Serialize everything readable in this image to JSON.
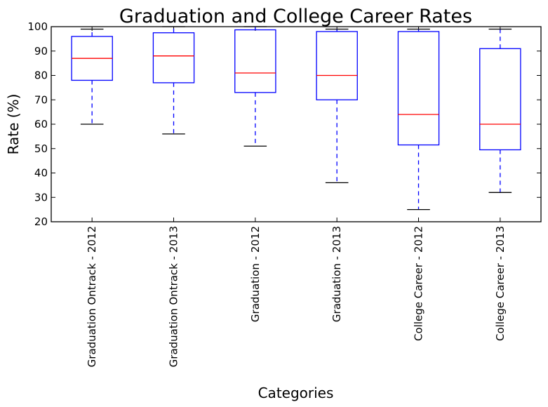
{
  "chart_data": {
    "type": "box",
    "title": "Graduation and College Career Rates",
    "xlabel": "Categories",
    "ylabel": "Rate (%)",
    "ylim": [
      20,
      100
    ],
    "yticks": [
      20,
      30,
      40,
      50,
      60,
      70,
      80,
      90,
      100
    ],
    "categories": [
      "Graduation Ontrack - 2012",
      "Graduation Ontrack - 2013",
      "Graduation - 2012",
      "Graduation - 2013",
      "College Career - 2012",
      "College Career - 2013"
    ],
    "boxes": [
      {
        "whislo": 60,
        "q1": 78,
        "med": 87,
        "q3": 96,
        "whishi": 99
      },
      {
        "whislo": 56,
        "q1": 77,
        "med": 88,
        "q3": 97.5,
        "whishi": 100
      },
      {
        "whislo": 51,
        "q1": 73,
        "med": 81,
        "q3": 98.7,
        "whishi": 100
      },
      {
        "whislo": 36,
        "q1": 70,
        "med": 80,
        "q3": 98,
        "whishi": 99
      },
      {
        "whislo": 25,
        "q1": 51.5,
        "med": 64,
        "q3": 98,
        "whishi": 99
      },
      {
        "whislo": 32,
        "q1": 49.5,
        "med": 60,
        "q3": 91,
        "whishi": 99
      }
    ],
    "colors": {
      "box": "#0000ff",
      "whisker": "#0000ff",
      "median": "#ff0000",
      "cap": "#000000",
      "axes": "#000000"
    },
    "grid": false
  }
}
